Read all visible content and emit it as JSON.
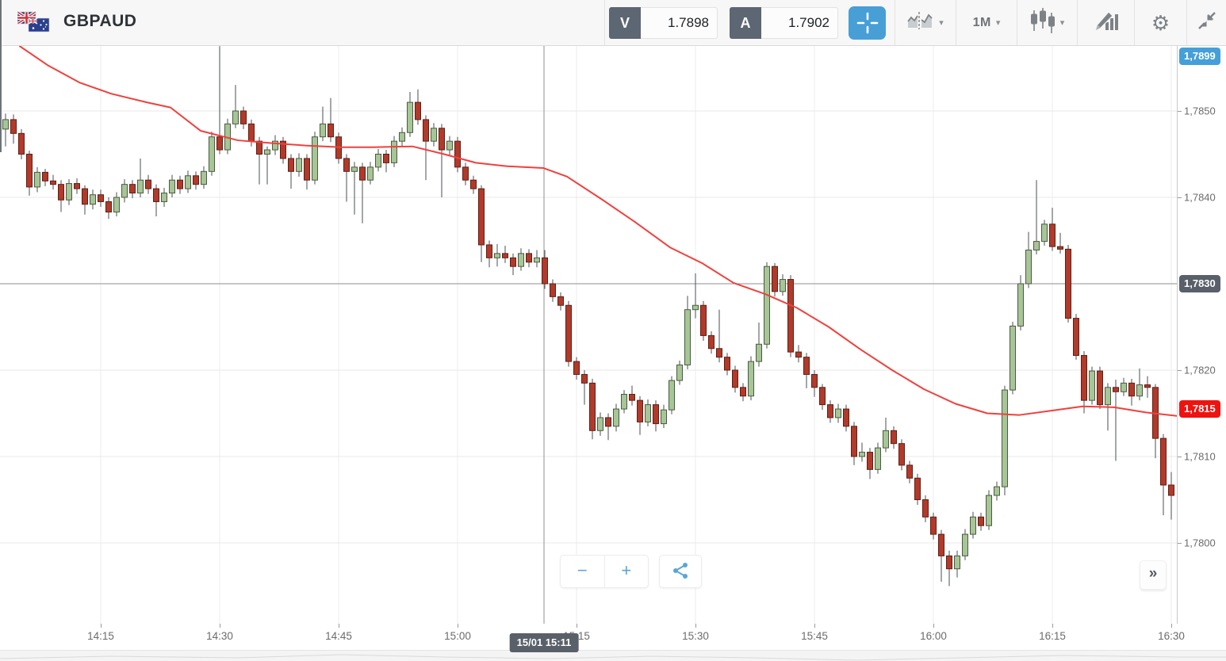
{
  "topbar": {
    "symbol": "GBPAUD",
    "sell_label": "V",
    "sell_price": "1.7898",
    "buy_label": "A",
    "buy_price": "1.7902",
    "interval": "1M"
  },
  "icons": {
    "caret": "▾",
    "gear": "⚙",
    "forward": "»",
    "zoom_out": "−",
    "zoom_in": "+"
  },
  "controls": {
    "zoom_out_label": "−",
    "zoom_in_label": "+",
    "forward_label": "»"
  },
  "colors": {
    "accent_blue": "#479fd6",
    "badge_blue": "#459fd8",
    "badge_dark": "#5a6069",
    "badge_red": "#ef1310",
    "candle_up_fill": "#a7c697",
    "candle_up_stroke": "#4c5a41",
    "candle_down_fill": "#b23a2b",
    "candle_down_stroke": "#5d2014",
    "wick": "#4a4f55",
    "ma_line": "#f0403c",
    "grid": "#ececec",
    "crosshair": "#8f8f8f",
    "axis_text": "#6b6b6b"
  },
  "chart_data": {
    "type": "candlestick",
    "symbol": "GBPAUD",
    "interval": "1m",
    "date": "15/01",
    "start_time": "14:03",
    "end_time": "16:30",
    "x_axis_labels": [
      "14:15",
      "14:30",
      "14:45",
      "15:00",
      "15:15",
      "15:30",
      "15:45",
      "16:00",
      "16:15",
      "16:30"
    ],
    "y_axis_labels": [
      "1,7850",
      "1,7840",
      "1,7820",
      "1,7810",
      "1,7800"
    ],
    "y_axis_values": [
      1.785,
      1.784,
      1.782,
      1.781,
      1.78
    ],
    "ylim": [
      1.77906,
      1.78575
    ],
    "crosshair": {
      "time_label": "15/01 15:11",
      "price_label": "1,7830",
      "price": 1.783,
      "x": 686
    },
    "badges": {
      "pinned_top": "1,7899",
      "crosshair": "1,7830",
      "last": "1,7815"
    },
    "last_line_price": 1.78155,
    "candles_format": [
      "time",
      "open",
      "high",
      "low",
      "close"
    ],
    "candles": [
      [
        "14:03",
        1.78479,
        1.78497,
        1.78459,
        1.7849
      ],
      [
        "14:04",
        1.7849,
        1.78496,
        1.78462,
        1.78474
      ],
      [
        "14:05",
        1.78474,
        1.78479,
        1.78444,
        1.7845
      ],
      [
        "14:06",
        1.7845,
        1.78454,
        1.78402,
        1.78412
      ],
      [
        "14:07",
        1.78412,
        1.78435,
        1.78406,
        1.78429
      ],
      [
        "14:08",
        1.78429,
        1.78433,
        1.78413,
        1.78419
      ],
      [
        "14:09",
        1.78419,
        1.78426,
        1.78409,
        1.78415
      ],
      [
        "14:10",
        1.78415,
        1.7842,
        1.78383,
        1.78397
      ],
      [
        "14:11",
        1.78397,
        1.78421,
        1.78391,
        1.78416
      ],
      [
        "14:12",
        1.78416,
        1.78422,
        1.78404,
        1.7841
      ],
      [
        "14:13",
        1.7841,
        1.78414,
        1.7838,
        1.78392
      ],
      [
        "14:14",
        1.78392,
        1.78409,
        1.78386,
        1.78403
      ],
      [
        "14:15",
        1.78403,
        1.78409,
        1.78389,
        1.78395
      ],
      [
        "14:16",
        1.78395,
        1.784,
        1.78375,
        1.78383
      ],
      [
        "14:17",
        1.78383,
        1.78406,
        1.78378,
        1.784
      ],
      [
        "14:18",
        1.784,
        1.78421,
        1.78394,
        1.78415
      ],
      [
        "14:19",
        1.78415,
        1.7842,
        1.78399,
        1.78405
      ],
      [
        "14:20",
        1.78405,
        1.78445,
        1.784,
        1.7842
      ],
      [
        "14:21",
        1.7842,
        1.78426,
        1.78404,
        1.7841
      ],
      [
        "14:22",
        1.7841,
        1.78415,
        1.78378,
        1.78395
      ],
      [
        "14:23",
        1.78395,
        1.78411,
        1.78389,
        1.78405
      ],
      [
        "14:24",
        1.78405,
        1.78426,
        1.784,
        1.7842
      ],
      [
        "14:25",
        1.7842,
        1.78425,
        1.78404,
        1.7841
      ],
      [
        "14:26",
        1.7841,
        1.78431,
        1.78405,
        1.78425
      ],
      [
        "14:27",
        1.78425,
        1.7843,
        1.78409,
        1.78415
      ],
      [
        "14:28",
        1.78415,
        1.78436,
        1.7841,
        1.7843
      ],
      [
        "14:29",
        1.7843,
        1.78476,
        1.78425,
        1.7847
      ],
      [
        "14:30",
        1.7847,
        1.78575,
        1.7845,
        1.78455
      ],
      [
        "14:31",
        1.78455,
        1.78491,
        1.7845,
        1.78485
      ],
      [
        "14:32",
        1.78485,
        1.7853,
        1.7848,
        1.785
      ],
      [
        "14:33",
        1.785,
        1.78505,
        1.78479,
        1.78485
      ],
      [
        "14:34",
        1.78485,
        1.7849,
        1.78459,
        1.78465
      ],
      [
        "14:35",
        1.78465,
        1.7847,
        1.78415,
        1.7845
      ],
      [
        "14:36",
        1.7845,
        1.78459,
        1.78415,
        1.78455
      ],
      [
        "14:37",
        1.78455,
        1.78472,
        1.78449,
        1.78465
      ],
      [
        "14:38",
        1.78465,
        1.7847,
        1.78439,
        1.78445
      ],
      [
        "14:39",
        1.78445,
        1.7845,
        1.7841,
        1.7843
      ],
      [
        "14:40",
        1.7843,
        1.78451,
        1.78424,
        1.78445
      ],
      [
        "14:41",
        1.78445,
        1.7845,
        1.78409,
        1.7842
      ],
      [
        "14:42",
        1.7842,
        1.78476,
        1.78415,
        1.7847
      ],
      [
        "14:43",
        1.7847,
        1.78505,
        1.78465,
        1.78485
      ],
      [
        "14:44",
        1.78485,
        1.78515,
        1.78464,
        1.7847
      ],
      [
        "14:45",
        1.7847,
        1.78475,
        1.78439,
        1.78445
      ],
      [
        "14:46",
        1.78445,
        1.7845,
        1.78395,
        1.7843
      ],
      [
        "14:47",
        1.7843,
        1.78441,
        1.7838,
        1.78435
      ],
      [
        "14:48",
        1.78435,
        1.7844,
        1.7837,
        1.7842
      ],
      [
        "14:49",
        1.7842,
        1.78441,
        1.78415,
        1.78435
      ],
      [
        "14:50",
        1.78435,
        1.78456,
        1.7843,
        1.7845
      ],
      [
        "14:51",
        1.7845,
        1.78455,
        1.78429,
        1.7844
      ],
      [
        "14:52",
        1.7844,
        1.78471,
        1.78435,
        1.78465
      ],
      [
        "14:53",
        1.78465,
        1.78481,
        1.78459,
        1.78475
      ],
      [
        "14:54",
        1.78475,
        1.78522,
        1.7847,
        1.7851
      ],
      [
        "14:55",
        1.7851,
        1.78525,
        1.78484,
        1.7849
      ],
      [
        "14:56",
        1.7849,
        1.78495,
        1.7842,
        1.78465
      ],
      [
        "14:57",
        1.78465,
        1.78486,
        1.78459,
        1.7848
      ],
      [
        "14:58",
        1.7848,
        1.78485,
        1.784,
        1.78455
      ],
      [
        "14:59",
        1.78455,
        1.78471,
        1.78449,
        1.78465
      ],
      [
        "15:00",
        1.78465,
        1.7847,
        1.78429,
        1.78435
      ],
      [
        "15:01",
        1.78435,
        1.7844,
        1.78414,
        1.7842
      ],
      [
        "15:02",
        1.7842,
        1.78425,
        1.78404,
        1.7841
      ],
      [
        "15:03",
        1.7841,
        1.78414,
        1.78325,
        1.78345
      ],
      [
        "15:04",
        1.78345,
        1.7835,
        1.78319,
        1.7833
      ],
      [
        "15:05",
        1.7833,
        1.78346,
        1.7832,
        1.78335
      ],
      [
        "15:06",
        1.78335,
        1.78344,
        1.78324,
        1.7833
      ],
      [
        "15:07",
        1.7833,
        1.78335,
        1.7831,
        1.7832
      ],
      [
        "15:08",
        1.7832,
        1.78341,
        1.78315,
        1.78335
      ],
      [
        "15:09",
        1.78335,
        1.7834,
        1.78319,
        1.78325
      ],
      [
        "15:10",
        1.78325,
        1.78339,
        1.78319,
        1.7833
      ],
      [
        "15:11",
        1.7833,
        1.78339,
        1.78294,
        1.783
      ],
      [
        "15:12",
        1.783,
        1.78305,
        1.78279,
        1.78285
      ],
      [
        "15:13",
        1.78285,
        1.7829,
        1.78269,
        1.78275
      ],
      [
        "15:14",
        1.78275,
        1.7828,
        1.78204,
        1.7821
      ],
      [
        "15:15",
        1.7821,
        1.78215,
        1.78189,
        1.78195
      ],
      [
        "15:16",
        1.78195,
        1.782,
        1.7816,
        1.78185
      ],
      [
        "15:17",
        1.78185,
        1.7819,
        1.7812,
        1.7813
      ],
      [
        "15:18",
        1.7813,
        1.78151,
        1.78124,
        1.78145
      ],
      [
        "15:19",
        1.78145,
        1.7815,
        1.78119,
        1.78135
      ],
      [
        "15:20",
        1.78135,
        1.78161,
        1.78129,
        1.78155
      ],
      [
        "15:21",
        1.78155,
        1.78177,
        1.7815,
        1.78172
      ],
      [
        "15:22",
        1.78172,
        1.78182,
        1.78159,
        1.78165
      ],
      [
        "15:23",
        1.78165,
        1.7817,
        1.78125,
        1.7814
      ],
      [
        "15:24",
        1.7814,
        1.78166,
        1.78135,
        1.7816
      ],
      [
        "15:25",
        1.7816,
        1.78165,
        1.78129,
        1.78138
      ],
      [
        "15:26",
        1.78138,
        1.7816,
        1.78133,
        1.78154
      ],
      [
        "15:27",
        1.78154,
        1.78193,
        1.78149,
        1.78188
      ],
      [
        "15:28",
        1.78188,
        1.78211,
        1.78183,
        1.78206
      ],
      [
        "15:29",
        1.78206,
        1.78286,
        1.78201,
        1.7827
      ],
      [
        "15:30",
        1.7827,
        1.78312,
        1.7826,
        1.78275
      ],
      [
        "15:31",
        1.78275,
        1.7828,
        1.78234,
        1.7824
      ],
      [
        "15:32",
        1.7824,
        1.78245,
        1.78219,
        1.78225
      ],
      [
        "15:33",
        1.78225,
        1.7827,
        1.78209,
        1.78215
      ],
      [
        "15:34",
        1.78215,
        1.7822,
        1.78194,
        1.782
      ],
      [
        "15:35",
        1.782,
        1.78205,
        1.78174,
        1.7818
      ],
      [
        "15:36",
        1.7818,
        1.78185,
        1.78164,
        1.7817
      ],
      [
        "15:37",
        1.7817,
        1.78216,
        1.78165,
        1.7821
      ],
      [
        "15:38",
        1.7821,
        1.78255,
        1.78204,
        1.7823
      ],
      [
        "15:39",
        1.7823,
        1.78325,
        1.78225,
        1.7832
      ],
      [
        "15:40",
        1.7832,
        1.78324,
        1.78285,
        1.78291
      ],
      [
        "15:41",
        1.78291,
        1.78311,
        1.78286,
        1.78305
      ],
      [
        "15:42",
        1.78305,
        1.7831,
        1.78215,
        1.78221
      ],
      [
        "15:43",
        1.78221,
        1.78229,
        1.78209,
        1.78215
      ],
      [
        "15:44",
        1.78215,
        1.7822,
        1.78179,
        1.78195
      ],
      [
        "15:45",
        1.78195,
        1.782,
        1.78169,
        1.7818
      ],
      [
        "15:46",
        1.7818,
        1.78184,
        1.78154,
        1.7816
      ],
      [
        "15:47",
        1.7816,
        1.78165,
        1.78139,
        1.78145
      ],
      [
        "15:48",
        1.78145,
        1.78161,
        1.78139,
        1.78155
      ],
      [
        "15:49",
        1.78155,
        1.7816,
        1.78129,
        1.78135
      ],
      [
        "15:50",
        1.78135,
        1.7814,
        1.7809,
        1.781
      ],
      [
        "15:51",
        1.781,
        1.78116,
        1.78094,
        1.78105
      ],
      [
        "15:52",
        1.78105,
        1.7811,
        1.78074,
        1.78085
      ],
      [
        "15:53",
        1.78085,
        1.78116,
        1.7808,
        1.7811
      ],
      [
        "15:54",
        1.7811,
        1.78145,
        1.78105,
        1.7813
      ],
      [
        "15:55",
        1.7813,
        1.78135,
        1.78109,
        1.78115
      ],
      [
        "15:56",
        1.78115,
        1.7812,
        1.78084,
        1.7809
      ],
      [
        "15:57",
        1.7809,
        1.78095,
        1.78069,
        1.78075
      ],
      [
        "15:58",
        1.78075,
        1.7808,
        1.78044,
        1.7805
      ],
      [
        "15:59",
        1.7805,
        1.78055,
        1.78024,
        1.7803
      ],
      [
        "16:00",
        1.7803,
        1.78035,
        1.78004,
        1.7801
      ],
      [
        "16:01",
        1.7801,
        1.78015,
        1.77955,
        1.77985
      ],
      [
        "16:02",
        1.77985,
        1.77991,
        1.7795,
        1.7797
      ],
      [
        "16:03",
        1.7797,
        1.77991,
        1.7796,
        1.77985
      ],
      [
        "16:04",
        1.77985,
        1.78016,
        1.7798,
        1.7801
      ],
      [
        "16:05",
        1.7801,
        1.78036,
        1.78005,
        1.7803
      ],
      [
        "16:06",
        1.7803,
        1.78035,
        1.78014,
        1.7802
      ],
      [
        "16:07",
        1.7802,
        1.78061,
        1.78015,
        1.78055
      ],
      [
        "16:08",
        1.78055,
        1.78071,
        1.78049,
        1.78065
      ],
      [
        "16:09",
        1.78065,
        1.78182,
        1.78055,
        1.78177
      ],
      [
        "16:10",
        1.78177,
        1.78256,
        1.78172,
        1.78251
      ],
      [
        "16:11",
        1.78251,
        1.7831,
        1.78246,
        1.783
      ],
      [
        "16:12",
        1.783,
        1.7836,
        1.78295,
        1.78339
      ],
      [
        "16:13",
        1.78339,
        1.7842,
        1.78334,
        1.78349
      ],
      [
        "16:14",
        1.78349,
        1.78374,
        1.78344,
        1.78369
      ],
      [
        "16:15",
        1.78369,
        1.78388,
        1.78338,
        1.78343
      ],
      [
        "16:16",
        1.78343,
        1.78359,
        1.78335,
        1.7834
      ],
      [
        "16:17",
        1.7834,
        1.78345,
        1.78255,
        1.7826
      ],
      [
        "16:18",
        1.7826,
        1.78265,
        1.78212,
        1.78217
      ],
      [
        "16:19",
        1.78217,
        1.78222,
        1.7815,
        1.78165
      ],
      [
        "16:20",
        1.78165,
        1.78204,
        1.7816,
        1.78199
      ],
      [
        "16:21",
        1.78199,
        1.78204,
        1.78155,
        1.7816
      ],
      [
        "16:22",
        1.7816,
        1.78185,
        1.7813,
        1.7818
      ],
      [
        "16:23",
        1.7818,
        1.78189,
        1.78095,
        1.78175
      ],
      [
        "16:24",
        1.78175,
        1.78191,
        1.7817,
        1.78185
      ],
      [
        "16:25",
        1.78185,
        1.7819,
        1.78159,
        1.7817
      ],
      [
        "16:26",
        1.7817,
        1.78202,
        1.78165,
        1.78183
      ],
      [
        "16:27",
        1.78183,
        1.78193,
        1.78168,
        1.7818
      ],
      [
        "16:28",
        1.7818,
        1.78184,
        1.78098,
        1.78121
      ],
      [
        "16:29",
        1.78121,
        1.78126,
        1.78032,
        1.78067
      ],
      [
        "16:30",
        1.78067,
        1.78082,
        1.78027,
        1.78055
      ]
    ],
    "ma_line": {
      "name": "moving-average",
      "points": [
        [
          25,
          1.78575
        ],
        [
          60,
          1.78553
        ],
        [
          100,
          1.78533
        ],
        [
          140,
          1.7852
        ],
        [
          185,
          1.7851
        ],
        [
          215,
          1.78504
        ],
        [
          253,
          1.78477
        ],
        [
          300,
          1.78466
        ],
        [
          340,
          1.78463
        ],
        [
          385,
          1.7846
        ],
        [
          430,
          1.78458
        ],
        [
          470,
          1.78458
        ],
        [
          520,
          1.78459
        ],
        [
          560,
          1.7845
        ],
        [
          600,
          1.7844
        ],
        [
          640,
          1.78436
        ],
        [
          685,
          1.78434
        ],
        [
          715,
          1.78424
        ],
        [
          760,
          1.78397
        ],
        [
          800,
          1.78372
        ],
        [
          845,
          1.78342
        ],
        [
          885,
          1.78324
        ],
        [
          925,
          1.78301
        ],
        [
          965,
          1.78288
        ],
        [
          1005,
          1.78272
        ],
        [
          1045,
          1.7825
        ],
        [
          1085,
          1.78224
        ],
        [
          1125,
          1.782
        ],
        [
          1165,
          1.78178
        ],
        [
          1205,
          1.78161
        ],
        [
          1245,
          1.7815
        ],
        [
          1285,
          1.78148
        ],
        [
          1325,
          1.78153
        ],
        [
          1365,
          1.78158
        ],
        [
          1405,
          1.78157
        ],
        [
          1445,
          1.78151
        ],
        [
          1484,
          1.78147
        ]
      ]
    },
    "navigator_points": [
      [
        0,
        10
      ],
      [
        140,
        7
      ],
      [
        300,
        9
      ],
      [
        430,
        5
      ],
      [
        560,
        8
      ],
      [
        690,
        10
      ],
      [
        820,
        7
      ],
      [
        950,
        9
      ],
      [
        1080,
        12
      ],
      [
        1210,
        9
      ],
      [
        1340,
        6
      ],
      [
        1484,
        8
      ],
      [
        1546,
        8
      ]
    ]
  }
}
